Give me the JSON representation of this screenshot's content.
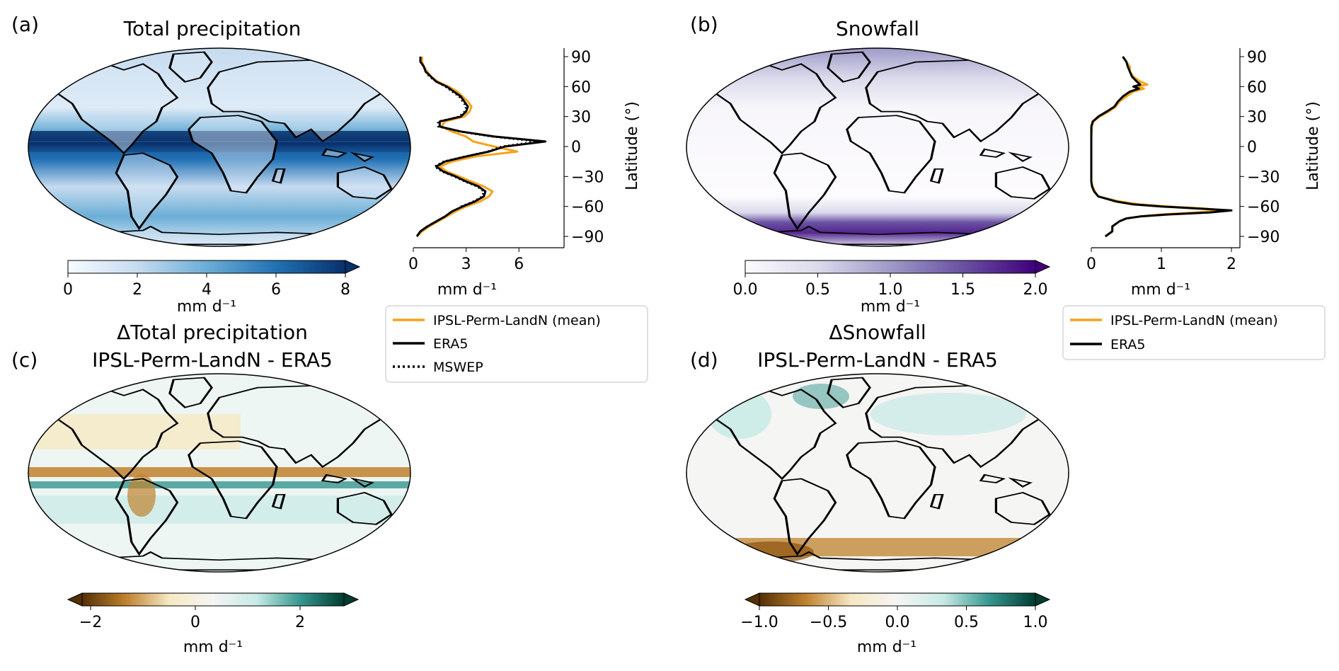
{
  "panels": {
    "a": {
      "label": "(a)",
      "title": "Total precipitation"
    },
    "b": {
      "label": "(b)",
      "title": "Snowfall"
    },
    "c": {
      "label": "(c)",
      "title": "ΔTotal precipitation",
      "subtitle": "IPSL-Perm-LandN - ERA5"
    },
    "d": {
      "label": "(d)",
      "title": "ΔSnowfall",
      "subtitle": "IPSL-Perm-LandN - ERA5"
    }
  },
  "colorbars": {
    "a": {
      "ticks": [
        "0",
        "2",
        "4",
        "6",
        "8"
      ],
      "unit": "mm d⁻¹"
    },
    "b": {
      "ticks": [
        "0.0",
        "0.5",
        "1.0",
        "1.5",
        "2.0"
      ],
      "unit": "mm d⁻¹"
    },
    "c": {
      "ticks": [
        "−2",
        "0",
        "2"
      ],
      "unit": "mm d⁻¹"
    },
    "d": {
      "ticks": [
        "−1.0",
        "−0.5",
        "0.0",
        "0.5",
        "1.0"
      ],
      "unit": "mm d⁻¹"
    }
  },
  "colors": {
    "model": "#f5a31a",
    "obs": "#000000",
    "blues": [
      "#f7fbff",
      "#c6dbef",
      "#6baed6",
      "#2171b5",
      "#08306b"
    ],
    "purples": [
      "#fcfbfd",
      "#dadaeb",
      "#9e9ac8",
      "#6a51a3",
      "#3f007d"
    ],
    "brbg": [
      "#543005",
      "#bf812d",
      "#f6e8c3",
      "#f5f5f5",
      "#c7eae5",
      "#35978f",
      "#003c30"
    ]
  },
  "chart_data": [
    {
      "type": "line",
      "panel": "a",
      "xlabel": "mm d⁻¹",
      "ylabel": "Latitude (°)",
      "xticks": [
        "0",
        "3",
        "6"
      ],
      "yticks": [
        "90",
        "60",
        "30",
        "0",
        "−30",
        "−60",
        "−90"
      ],
      "xlim": [
        0,
        8
      ],
      "ylim": [
        -90,
        90
      ],
      "legend": [
        "IPSL-Perm-LandN (mean)",
        "ERA5",
        "MSWEP"
      ],
      "series": [
        {
          "name": "IPSL-Perm-LandN (mean)",
          "style": "solid-orange",
          "lat": [
            -90,
            -85,
            -80,
            -75,
            -70,
            -65,
            -60,
            -55,
            -50,
            -45,
            -40,
            -35,
            -30,
            -25,
            -20,
            -15,
            -10,
            -5,
            0,
            5,
            10,
            15,
            20,
            25,
            30,
            35,
            40,
            45,
            50,
            55,
            60,
            65,
            70,
            75,
            80,
            85,
            90
          ],
          "x": [
            0.2,
            0.5,
            0.9,
            1.4,
            1.9,
            2.4,
            3.0,
            3.8,
            4.3,
            4.5,
            4.0,
            3.3,
            2.6,
            1.9,
            1.5,
            2.2,
            3.5,
            5.9,
            4.6,
            3.4,
            3.0,
            2.2,
            1.6,
            1.8,
            2.9,
            3.2,
            3.3,
            3.1,
            2.8,
            2.5,
            2.0,
            1.4,
            1.0,
            0.8,
            0.6,
            0.5,
            0.5
          ]
        },
        {
          "name": "ERA5",
          "style": "solid-black",
          "lat": [
            -90,
            -85,
            -80,
            -75,
            -70,
            -65,
            -60,
            -55,
            -50,
            -45,
            -40,
            -35,
            -30,
            -25,
            -20,
            -15,
            -10,
            -5,
            0,
            5,
            10,
            15,
            20,
            25,
            30,
            35,
            40,
            45,
            50,
            55,
            60,
            65,
            70,
            75,
            80,
            85,
            90
          ],
          "x": [
            0.2,
            0.4,
            0.8,
            1.3,
            1.8,
            2.2,
            2.8,
            3.5,
            4.0,
            4.1,
            3.7,
            3.0,
            2.4,
            1.7,
            1.3,
            1.8,
            3.0,
            4.3,
            5.2,
            7.5,
            4.6,
            2.7,
            1.5,
            1.5,
            2.7,
            3.0,
            3.1,
            2.9,
            2.7,
            2.3,
            1.9,
            1.3,
            1.0,
            0.7,
            0.6,
            0.4,
            0.4
          ]
        },
        {
          "name": "MSWEP",
          "style": "dotted-black",
          "lat": [
            -60,
            -55,
            -50,
            -45,
            -40,
            -35,
            -30,
            -25,
            -20,
            -15,
            -10,
            -5,
            0,
            5,
            10,
            15,
            20,
            25,
            30,
            35,
            40,
            45,
            50,
            55,
            60,
            65,
            70,
            75,
            80
          ],
          "x": [
            2.7,
            3.4,
            3.9,
            4.0,
            3.6,
            2.9,
            2.3,
            1.6,
            1.2,
            1.7,
            2.9,
            4.2,
            5.0,
            7.0,
            4.4,
            2.6,
            1.4,
            1.4,
            2.6,
            2.9,
            3.0,
            2.8,
            2.6,
            2.2,
            1.8,
            1.3,
            0.9,
            0.7,
            0.6
          ]
        }
      ]
    },
    {
      "type": "line",
      "panel": "b",
      "xlabel": "mm d⁻¹",
      "ylabel": "Latitude (°)",
      "xticks": [
        "0",
        "1",
        "2"
      ],
      "yticks": [
        "90",
        "60",
        "30",
        "0",
        "−30",
        "−60",
        "−90"
      ],
      "xlim": [
        0,
        2
      ],
      "ylim": [
        -90,
        90
      ],
      "legend": [
        "IPSL-Perm-LandN (mean)",
        "ERA5"
      ],
      "series": [
        {
          "name": "IPSL-Perm-LandN (mean)",
          "style": "solid-orange",
          "lat": [
            -90,
            -85,
            -80,
            -75,
            -72,
            -70,
            -68,
            -66,
            -64,
            -62,
            -60,
            -58,
            -55,
            -50,
            -45,
            -40,
            -35,
            -30,
            -20,
            -10,
            0,
            10,
            20,
            25,
            30,
            35,
            40,
            45,
            50,
            55,
            58,
            60,
            62,
            65,
            70,
            75,
            80,
            85,
            90
          ],
          "x": [
            0.2,
            0.3,
            0.3,
            0.4,
            0.5,
            0.7,
            1.0,
            1.5,
            1.9,
            1.6,
            1.1,
            0.7,
            0.4,
            0.1,
            0.05,
            0.02,
            0.0,
            0.0,
            0.0,
            0.0,
            0.0,
            0.0,
            0.01,
            0.03,
            0.12,
            0.25,
            0.35,
            0.4,
            0.5,
            0.6,
            0.75,
            0.65,
            0.8,
            0.7,
            0.6,
            0.55,
            0.55,
            0.5,
            0.45
          ]
        },
        {
          "name": "ERA5",
          "style": "solid-black",
          "lat": [
            -90,
            -85,
            -80,
            -75,
            -72,
            -70,
            -68,
            -66,
            -64,
            -62,
            -60,
            -58,
            -55,
            -50,
            -45,
            -40,
            -35,
            -30,
            -20,
            -10,
            0,
            10,
            20,
            25,
            30,
            35,
            40,
            45,
            50,
            55,
            58,
            60,
            62,
            65,
            70,
            75,
            80,
            85,
            90
          ],
          "x": [
            0.2,
            0.3,
            0.3,
            0.4,
            0.5,
            0.7,
            1.1,
            1.7,
            2.0,
            1.5,
            1.0,
            0.6,
            0.35,
            0.1,
            0.04,
            0.01,
            0.0,
            0.0,
            0.0,
            0.0,
            0.0,
            0.0,
            0.0,
            0.02,
            0.1,
            0.22,
            0.33,
            0.38,
            0.45,
            0.55,
            0.68,
            0.6,
            0.7,
            0.65,
            0.58,
            0.55,
            0.52,
            0.5,
            0.45
          ]
        }
      ]
    },
    {
      "type": "heatmap",
      "panel": "a",
      "colormap": "Blues",
      "range": [
        0,
        8
      ]
    },
    {
      "type": "heatmap",
      "panel": "b",
      "colormap": "Purples",
      "range": [
        0,
        2
      ]
    },
    {
      "type": "heatmap",
      "panel": "c",
      "colormap": "BrBG",
      "range": [
        -3,
        3
      ]
    },
    {
      "type": "heatmap",
      "panel": "d",
      "colormap": "BrBG",
      "range": [
        -1,
        1
      ]
    }
  ]
}
